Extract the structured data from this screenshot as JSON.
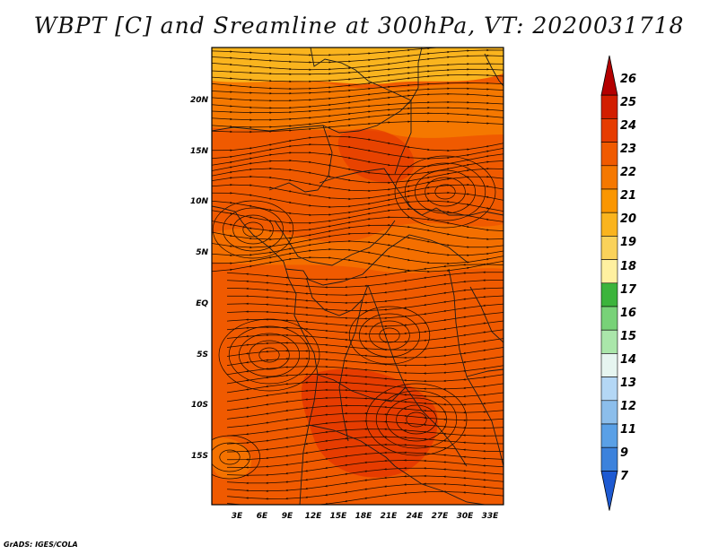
{
  "title": "WBPT [C] and Sreamline at 300hPa, VT: 2020031718",
  "credit": "GrADS: IGES/COLA",
  "lat_labels": [
    "20N",
    "15N",
    "10N",
    "5N",
    "EQ",
    "5S",
    "10S",
    "15S"
  ],
  "lon_labels": [
    "3E",
    "6E",
    "9E",
    "12E",
    "15E",
    "18E",
    "21E",
    "24E",
    "27E",
    "30E",
    "33E"
  ],
  "colorbar": {
    "labels": [
      "26",
      "25",
      "24",
      "23",
      "22",
      "21",
      "20",
      "19",
      "18",
      "17",
      "16",
      "15",
      "14",
      "13",
      "12",
      "11",
      "9",
      "7"
    ],
    "colors": [
      "#b40000",
      "#d21e00",
      "#e63c00",
      "#f05a00",
      "#f57800",
      "#fa9600",
      "#fab41e",
      "#fad25a",
      "#fff0a0",
      "#3cb43c",
      "#78d278",
      "#aae6aa",
      "#e6f5f0",
      "#b4d7f5",
      "#8cbeeb",
      "#5aa0e6",
      "#3c82dc",
      "#1e5ad2"
    ]
  },
  "colors": {
    "warm_main": "#f05a00",
    "warm_light": "#f57800",
    "warm_dark": "#e63c00",
    "warm_north": "#fab41e"
  }
}
